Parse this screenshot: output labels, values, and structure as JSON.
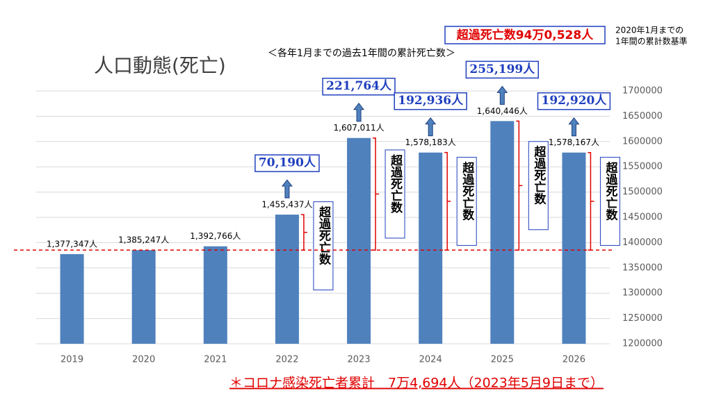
{
  "chart_data": {
    "type": "bar",
    "title": "人口動態(死亡)",
    "subtitle": "＜各年1月までの過去1年間の累計死亡数＞",
    "total_annotation": "超過死亡数94万0,528人",
    "basis_note": [
      "2020年1月までの",
      "1年間の累計数基準"
    ],
    "footer": "＊コロナ感染死亡者累計　7万4,694人（2023年5月9日まで）",
    "categories": [
      "2019",
      "2020",
      "2021",
      "2022",
      "2023",
      "2024",
      "2025",
      "2026"
    ],
    "values": [
      1377347,
      1385247,
      1392766,
      1455437,
      1607011,
      1578183,
      1640446,
      1578167
    ],
    "value_labels": [
      "1,377,347人",
      "1,385,247人",
      "1,392,766人",
      "1,455,437人",
      "1,607,011人",
      "1,578,183人",
      "1,640,446人",
      "1,578,167人"
    ],
    "excess_labels": [
      null,
      null,
      null,
      "70,190人",
      "221,764人",
      "192,936人",
      "255,199人",
      "192,920人"
    ],
    "excess_box_label": "超過死亡数",
    "baseline": 1385247,
    "color": "#4f81bd",
    "ylim": [
      1200000,
      1700000
    ],
    "yticks": [
      1200000,
      1250000,
      1300000,
      1350000,
      1400000,
      1450000,
      1500000,
      1550000,
      1600000,
      1650000,
      1700000
    ],
    "grid": true
  }
}
